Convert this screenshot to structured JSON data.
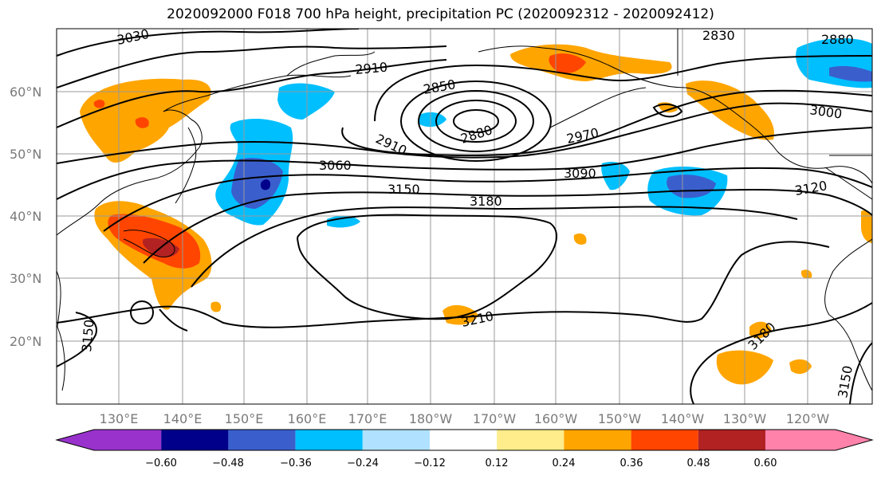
{
  "title": "2020092000 F018 700 hPa height, precipitation PC (2020092312 - 2020092412)",
  "lat_labels": [
    "60°N",
    "50°N",
    "40°N",
    "30°N",
    "20°N"
  ],
  "lon_labels": [
    "130°E",
    "140°E",
    "150°E",
    "160°E",
    "170°E",
    "180°W",
    "170°W",
    "160°W",
    "150°W",
    "140°W",
    "130°W",
    "120°W"
  ],
  "contour_labels": [
    "3030",
    "2910",
    "2850",
    "2880",
    "2910",
    "2970",
    "3060",
    "3090",
    "3150",
    "3180",
    "3210",
    "3150",
    "3000",
    "3120",
    "2830",
    "2880",
    "3180",
    "3150"
  ],
  "colorbar": {
    "tick_labels": [
      "−0.60",
      "−0.48",
      "−0.36",
      "−0.24",
      "−0.12",
      "0.12",
      "0.24",
      "0.36",
      "0.48",
      "0.60"
    ],
    "colors": [
      "#9932cc",
      "#00008b",
      "#3a5fcd",
      "#00bfff",
      "#b0e2ff",
      "#ffffff",
      "#ffec8b",
      "#ffa500",
      "#ff4500",
      "#b22222",
      "#ff82ab"
    ]
  },
  "shading_colors": {
    "neg_light": "#00bfff",
    "neg_mid": "#3a5fcd",
    "neg_dark": "#00008b",
    "pos_light": "#ffa500",
    "pos_mid": "#ff4500",
    "pos_dark": "#b22222",
    "pos_faint": "#ffec8b"
  }
}
